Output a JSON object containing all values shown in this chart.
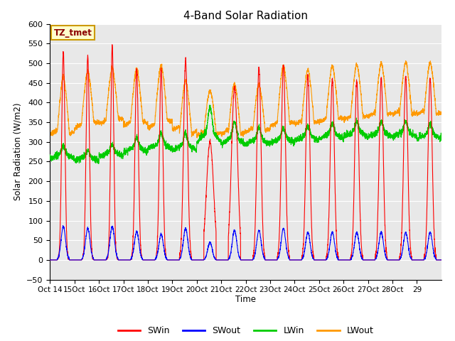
{
  "title": "4-Band Solar Radiation",
  "xlabel": "Time",
  "ylabel": "Solar Radiation (W/m2)",
  "annotation": "TZ_tmet",
  "ylim": [
    -50,
    570
  ],
  "bg_color": "#e8e8e8",
  "fig_color": "#ffffff",
  "grid_color": "#ffffff",
  "colors": {
    "SWin": "#ff0000",
    "SWout": "#0000ff",
    "LWin": "#00cc00",
    "LWout": "#ff9900"
  },
  "n_days": 16,
  "start_day": 14,
  "tick_labels": [
    "Oct 14",
    "15Oct",
    "16Oct",
    "17Oct",
    "18Oct",
    "19Oct",
    "20Oct",
    "21Oct",
    "22Oct",
    "23Oct",
    "24Oct",
    "25Oct",
    "26Oct",
    "27Oct",
    "28Oct",
    "29"
  ],
  "SWin_peaks": [
    530,
    520,
    545,
    483,
    485,
    507,
    300,
    437,
    490,
    495,
    470,
    460,
    455,
    462,
    465,
    462
  ],
  "SWin_widths": [
    1.6,
    1.6,
    1.5,
    1.7,
    1.7,
    2.0,
    3.5,
    3.0,
    2.0,
    2.0,
    2.0,
    2.0,
    2.0,
    2.0,
    2.0,
    2.0
  ],
  "SWout_peaks": [
    85,
    80,
    85,
    72,
    65,
    80,
    45,
    75,
    75,
    80,
    70,
    70,
    70,
    70,
    70,
    70
  ],
  "LWin_baselines": [
    258,
    253,
    263,
    273,
    283,
    278,
    298,
    293,
    293,
    298,
    303,
    308,
    313,
    313,
    313,
    308
  ],
  "LWin_bumps": [
    22,
    18,
    22,
    27,
    27,
    32,
    65,
    42,
    32,
    27,
    27,
    27,
    27,
    27,
    27,
    27
  ],
  "LWout_day_mins": [
    320,
    350,
    360,
    350,
    355,
    320,
    320,
    320,
    330,
    350,
    350,
    360,
    365,
    370,
    370,
    370
  ],
  "LWout_peaks": [
    450,
    465,
    472,
    472,
    480,
    440,
    418,
    432,
    430,
    478,
    470,
    478,
    483,
    485,
    487,
    487
  ],
  "LWout_night_vals": [
    330,
    345,
    355,
    350,
    345,
    340,
    325,
    330,
    335,
    350,
    355,
    360,
    365,
    375,
    380,
    380
  ]
}
